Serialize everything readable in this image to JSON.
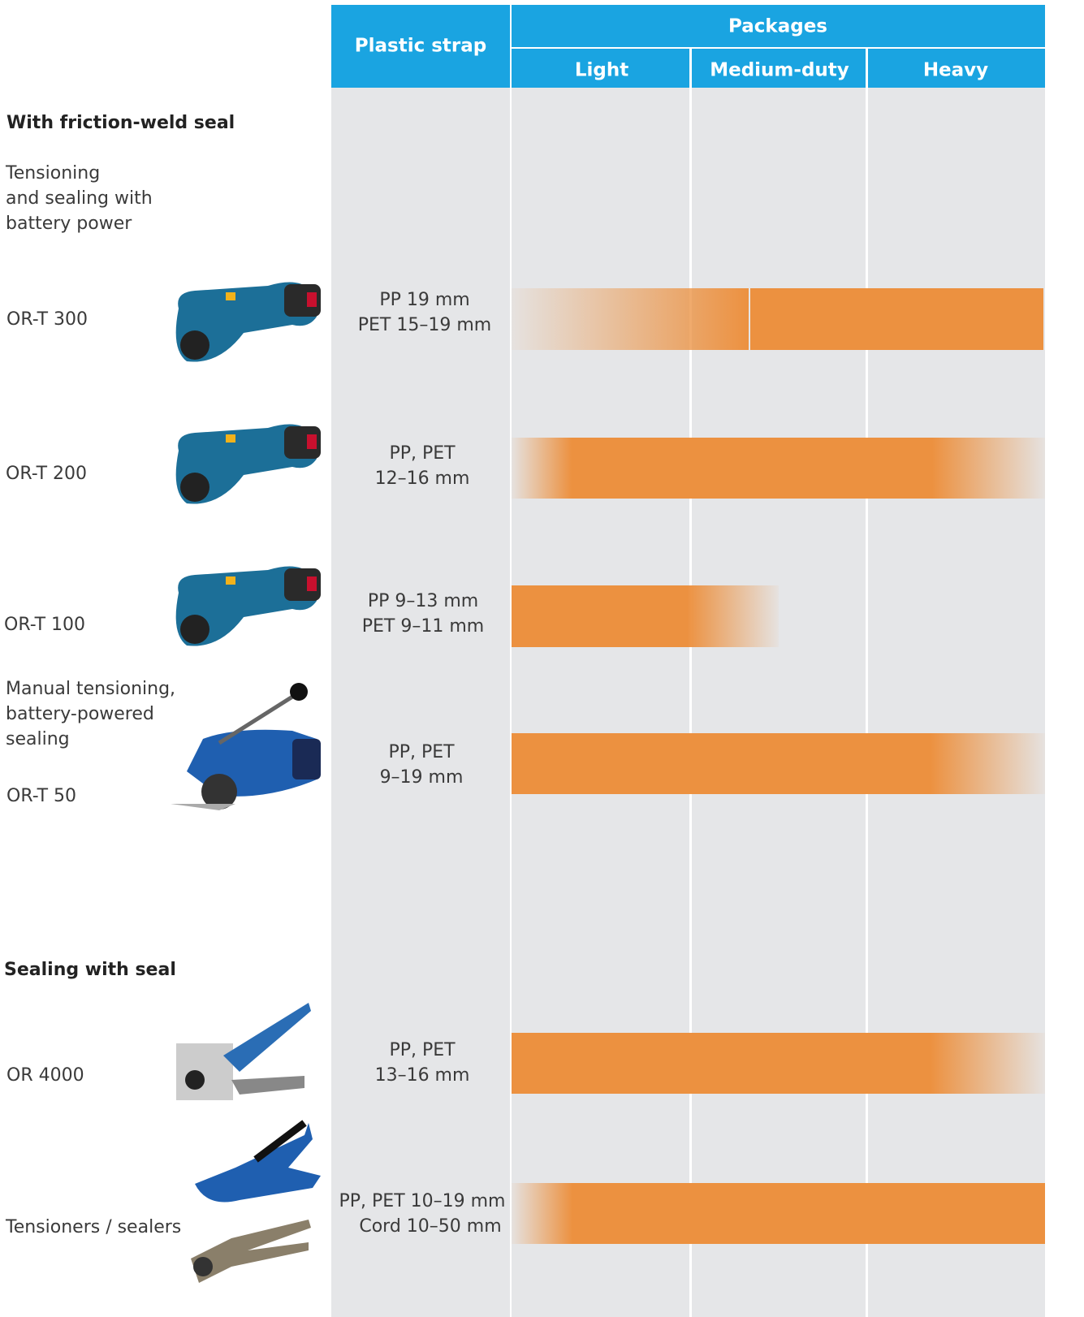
{
  "header": {
    "strap_column": "Plastic strap",
    "packages": "Packages",
    "package_columns": [
      "Light",
      "Medium-duty",
      "Heavy"
    ]
  },
  "sections": [
    {
      "title": "With friction-weld seal",
      "description": [
        "Tensioning",
        "and sealing with",
        "battery power"
      ],
      "products": [
        {
          "name": "OR-T 300",
          "strap": [
            "PP 19 mm",
            "PET 15–19 mm"
          ]
        },
        {
          "name": "OR-T 200",
          "strap": [
            "PP, PET",
            "12–16 mm"
          ]
        },
        {
          "name": "OR-T 100",
          "strap": [
            "PP 9–13 mm",
            "PET 9–11 mm"
          ]
        },
        {
          "description": [
            "Manual tensioning,",
            "battery-powered",
            "sealing"
          ],
          "name": "OR-T 50",
          "strap": [
            "PP, PET",
            "9–19 mm"
          ]
        }
      ]
    },
    {
      "title": "Sealing with seal",
      "products": [
        {
          "name": "OR 4000",
          "strap": [
            "PP, PET",
            "13–16 mm"
          ]
        },
        {
          "name": "Tensioners / sealers",
          "strap": [
            "PP, PET 10–19 mm",
            "Cord 10–50 mm"
          ]
        }
      ]
    }
  ]
}
